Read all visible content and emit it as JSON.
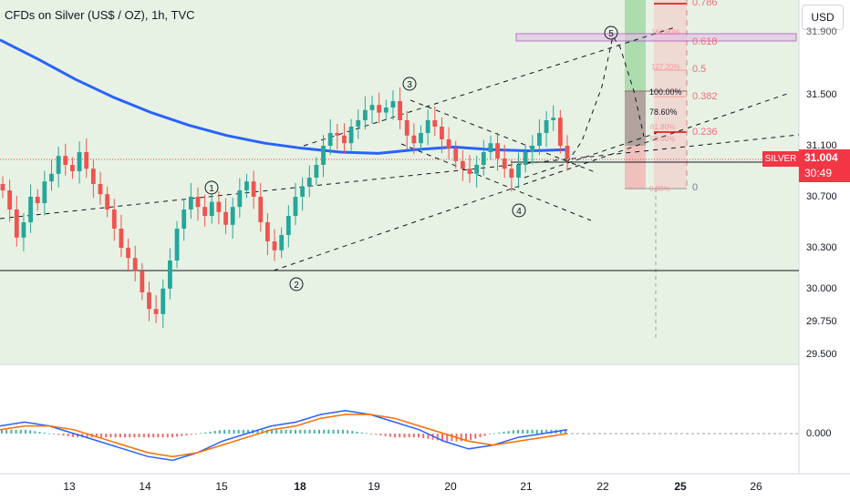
{
  "header": {
    "title": "CFDs on Silver (US$ / OZ), 1h, TVC",
    "currency_button": "USD"
  },
  "price_tag": {
    "symbol": "SILVER",
    "price": "31.004",
    "countdown": "30:49"
  },
  "y_axis_ticks": [
    "31.500",
    "31.100",
    "30.700",
    "30.300",
    "30.000",
    "29.750",
    "29.500"
  ],
  "y_axis_top_partial": "31.900",
  "x_axis_ticks": [
    {
      "label": "13",
      "bold": false
    },
    {
      "label": "14",
      "bold": false
    },
    {
      "label": "15",
      "bold": false
    },
    {
      "label": "18",
      "bold": true
    },
    {
      "label": "19",
      "bold": false
    },
    {
      "label": "20",
      "bold": false
    },
    {
      "label": "21",
      "bold": false
    },
    {
      "label": "22",
      "bold": false
    },
    {
      "label": "25",
      "bold": true
    },
    {
      "label": "26",
      "bold": false
    }
  ],
  "fib_levels": [
    {
      "label": "0.786"
    },
    {
      "label": "0.618"
    },
    {
      "label": "0.5"
    },
    {
      "label": "0.382"
    },
    {
      "label": "0.236"
    },
    {
      "label": "0"
    }
  ],
  "projection_labels": [
    "161.80%",
    "127.20%",
    "100.00%",
    "78.60%",
    "61.80%",
    "50.00%",
    "0.00%"
  ],
  "wave_labels": [
    "1",
    "2",
    "3",
    "4",
    "5"
  ],
  "macd": {
    "zero_label": "0.000"
  },
  "colors": {
    "bull": "#26a69a",
    "bear": "#ef5350",
    "ma": "#2962ff",
    "macd": "#2962ff",
    "signal": "#ff6d00",
    "bg_zone": "#e7f2e4",
    "price_tag": "#f23645",
    "fib": "#f26c7a",
    "fib_box": "#9c27b0"
  },
  "chart_data": {
    "type": "candlestick",
    "title": "CFDs on Silver (US$ / OZ), 1h, TVC",
    "y_range": [
      29.45,
      31.98
    ],
    "x_range_days": [
      "13",
      "14",
      "15",
      "18",
      "19",
      "20",
      "21",
      "22",
      "25",
      "26"
    ],
    "last_price": 31.004,
    "horizontal_levels": [
      31.004,
      30.15
    ],
    "moving_average": [
      31.93,
      31.78,
      31.62,
      31.48,
      31.36,
      31.26,
      31.18,
      31.12,
      31.08,
      31.05,
      31.04,
      31.07,
      31.09,
      31.07,
      31.06,
      31.07
    ],
    "candles_close": [
      30.75,
      30.6,
      30.38,
      30.5,
      30.7,
      30.65,
      30.82,
      30.88,
      31.02,
      30.95,
      30.9,
      31.05,
      30.92,
      30.8,
      30.72,
      30.6,
      30.45,
      30.3,
      30.22,
      30.12,
      29.95,
      29.82,
      29.78,
      29.98,
      30.2,
      30.45,
      30.6,
      30.7,
      30.62,
      30.55,
      30.66,
      30.58,
      30.48,
      30.62,
      30.75,
      30.82,
      30.7,
      30.5,
      30.35,
      30.28,
      30.4,
      30.55,
      30.7,
      30.78,
      30.85,
      30.95,
      31.1,
      31.2,
      31.18,
      31.12,
      31.25,
      31.3,
      31.38,
      31.42,
      31.36,
      31.4,
      31.45,
      31.3,
      31.18,
      31.12,
      31.2,
      31.3,
      31.25,
      31.15,
      31.08,
      30.98,
      30.92,
      30.88,
      30.95,
      31.05,
      31.12,
      31.0,
      30.92,
      30.85,
      30.95,
      31.05,
      31.1,
      31.2,
      31.3,
      31.32,
      31.1,
      31.0
    ],
    "macd_line": [
      0.02,
      0.03,
      0.02,
      0.0,
      -0.02,
      -0.04,
      -0.06,
      -0.07,
      -0.05,
      -0.02,
      0.0,
      0.02,
      0.03,
      0.05,
      0.06,
      0.05,
      0.03,
      0.01,
      -0.02,
      -0.04,
      -0.03,
      -0.01,
      0.0,
      0.01
    ],
    "signal_line": [
      0.01,
      0.02,
      0.02,
      0.01,
      -0.01,
      -0.03,
      -0.05,
      -0.06,
      -0.05,
      -0.03,
      -0.01,
      0.01,
      0.02,
      0.04,
      0.05,
      0.05,
      0.04,
      0.02,
      0.0,
      -0.02,
      -0.03,
      -0.02,
      -0.01,
      0.0
    ]
  }
}
